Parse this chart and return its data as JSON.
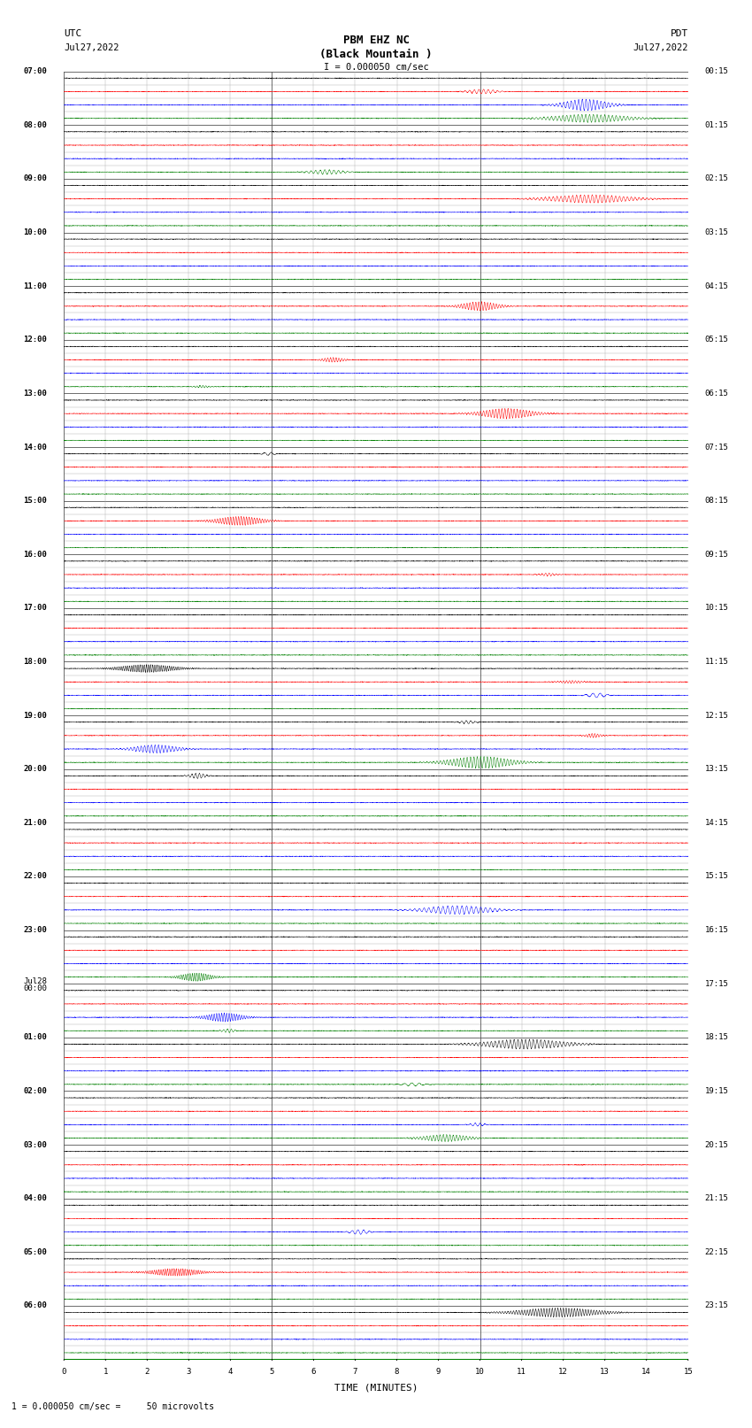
{
  "title_line1": "PBM EHZ NC",
  "title_line2": "(Black Mountain )",
  "scale_label": "I = 0.000050 cm/sec",
  "left_header": "UTC",
  "left_date": "Jul27,2022",
  "right_header": "PDT",
  "right_date": "Jul27,2022",
  "xlabel": "TIME (MINUTES)",
  "bottom_note": "1 = 0.000050 cm/sec =     50 microvolts",
  "left_times": [
    "07:00",
    "",
    "",
    "",
    "08:00",
    "",
    "",
    "",
    "09:00",
    "",
    "",
    "",
    "10:00",
    "",
    "",
    "",
    "11:00",
    "",
    "",
    "",
    "12:00",
    "",
    "",
    "",
    "13:00",
    "",
    "",
    "",
    "14:00",
    "",
    "",
    "",
    "15:00",
    "",
    "",
    "",
    "16:00",
    "",
    "",
    "",
    "17:00",
    "",
    "",
    "",
    "18:00",
    "",
    "",
    "",
    "19:00",
    "",
    "",
    "",
    "20:00",
    "",
    "",
    "",
    "21:00",
    "",
    "",
    "",
    "22:00",
    "",
    "",
    "",
    "23:00",
    "",
    "",
    "",
    "Jul28\n00:00",
    "",
    "",
    "",
    "01:00",
    "",
    "",
    "",
    "02:00",
    "",
    "",
    "",
    "03:00",
    "",
    "",
    "",
    "04:00",
    "",
    "",
    "",
    "05:00",
    "",
    "",
    "",
    "06:00",
    "",
    "",
    ""
  ],
  "right_times": [
    "00:15",
    "",
    "",
    "",
    "01:15",
    "",
    "",
    "",
    "02:15",
    "",
    "",
    "",
    "03:15",
    "",
    "",
    "",
    "04:15",
    "",
    "",
    "",
    "05:15",
    "",
    "",
    "",
    "06:15",
    "",
    "",
    "",
    "07:15",
    "",
    "",
    "",
    "08:15",
    "",
    "",
    "",
    "09:15",
    "",
    "",
    "",
    "10:15",
    "",
    "",
    "",
    "11:15",
    "",
    "",
    "",
    "12:15",
    "",
    "",
    "",
    "13:15",
    "",
    "",
    "",
    "14:15",
    "",
    "",
    "",
    "15:15",
    "",
    "",
    "",
    "16:15",
    "",
    "",
    "",
    "17:15",
    "",
    "",
    "",
    "18:15",
    "",
    "",
    "",
    "19:15",
    "",
    "",
    "",
    "20:15",
    "",
    "",
    "",
    "21:15",
    "",
    "",
    "",
    "22:15",
    "",
    "",
    "",
    "23:15",
    "",
    "",
    ""
  ],
  "n_rows": 96,
  "n_cols": 15,
  "bg_color": "#ffffff",
  "trace_colors": [
    "black",
    "red",
    "blue",
    "green"
  ],
  "grid_color": "#aaaaaa",
  "major_grid_color": "#555555",
  "figsize": [
    8.5,
    16.13
  ],
  "dpi": 100
}
